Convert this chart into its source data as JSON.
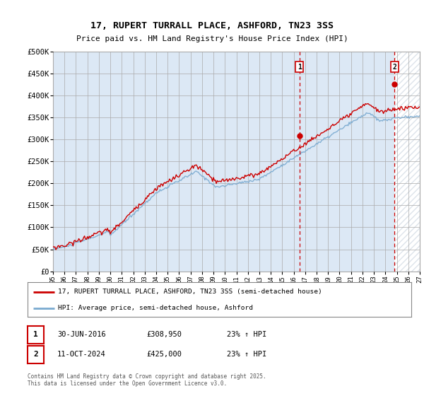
{
  "title": "17, RUPERT TURRALL PLACE, ASHFORD, TN23 3SS",
  "subtitle": "Price paid vs. HM Land Registry's House Price Index (HPI)",
  "yticks": [
    0,
    50000,
    100000,
    150000,
    200000,
    250000,
    300000,
    350000,
    400000,
    450000,
    500000
  ],
  "ytick_labels": [
    "£0",
    "£50K",
    "£100K",
    "£150K",
    "£200K",
    "£250K",
    "£300K",
    "£350K",
    "£400K",
    "£450K",
    "£500K"
  ],
  "year_start": 1995,
  "year_end": 2027,
  "hpi_color": "#7aaad0",
  "price_color": "#cc0000",
  "vline_color": "#cc0000",
  "background_color": "#dce8f5",
  "hatch_color": "#c8d8e8",
  "grid_color": "#aaaaaa",
  "sale1_year": 2016.5,
  "sale1_price": 308950,
  "sale2_year": 2024.79,
  "sale2_price": 425000,
  "sale1_label": "30-JUN-2016",
  "sale1_amount": "£308,950",
  "sale1_hpi": "23% ↑ HPI",
  "sale2_label": "11-OCT-2024",
  "sale2_amount": "£425,000",
  "sale2_hpi": "23% ↑ HPI",
  "legend_line1": "17, RUPERT TURRALL PLACE, ASHFORD, TN23 3SS (semi-detached house)",
  "legend_line2": "HPI: Average price, semi-detached house, Ashford",
  "footnote": "Contains HM Land Registry data © Crown copyright and database right 2025.\nThis data is licensed under the Open Government Licence v3.0."
}
